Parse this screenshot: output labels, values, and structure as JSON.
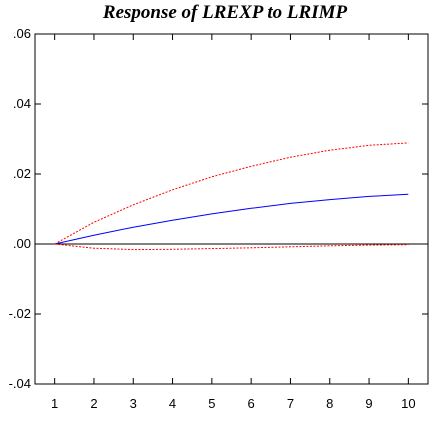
{
  "chart_data": {
    "type": "line",
    "title": "Response of LREXP to LRIMP",
    "xlabel": "",
    "ylabel": "",
    "x": [
      1,
      2,
      3,
      4,
      5,
      6,
      7,
      8,
      9,
      10
    ],
    "x_tick_labels": [
      "1",
      "2",
      "3",
      "4",
      "5",
      "6",
      "7",
      "8",
      "9",
      "10"
    ],
    "y_tick_labels": [
      ".06",
      ".04",
      ".02",
      ".00",
      "-.02",
      "-.04"
    ],
    "y_ticks": [
      0.06,
      0.04,
      0.02,
      0.0,
      -0.02,
      -0.04
    ],
    "ylim": [
      -0.04,
      0.06
    ],
    "xlim": [
      0.5,
      10.5
    ],
    "zero_line": true,
    "grid": false,
    "series": [
      {
        "role": "response",
        "style": "solid",
        "color": "#0000ff",
        "values": [
          0.0,
          0.0025,
          0.0048,
          0.0068,
          0.0086,
          0.0102,
          0.0116,
          0.0127,
          0.0136,
          0.0142
        ]
      },
      {
        "role": "upper-band",
        "style": "dashed",
        "color": "#ff0000",
        "values": [
          0.0,
          0.0062,
          0.0112,
          0.0155,
          0.0192,
          0.0222,
          0.0248,
          0.0268,
          0.0282,
          0.0289
        ]
      },
      {
        "role": "lower-band",
        "style": "dashed",
        "color": "#ff0000",
        "values": [
          0.0,
          -0.0012,
          -0.0016,
          -0.0015,
          -0.0013,
          -0.0011,
          -0.0008,
          -0.0005,
          -0.0003,
          -0.0002
        ]
      }
    ]
  }
}
